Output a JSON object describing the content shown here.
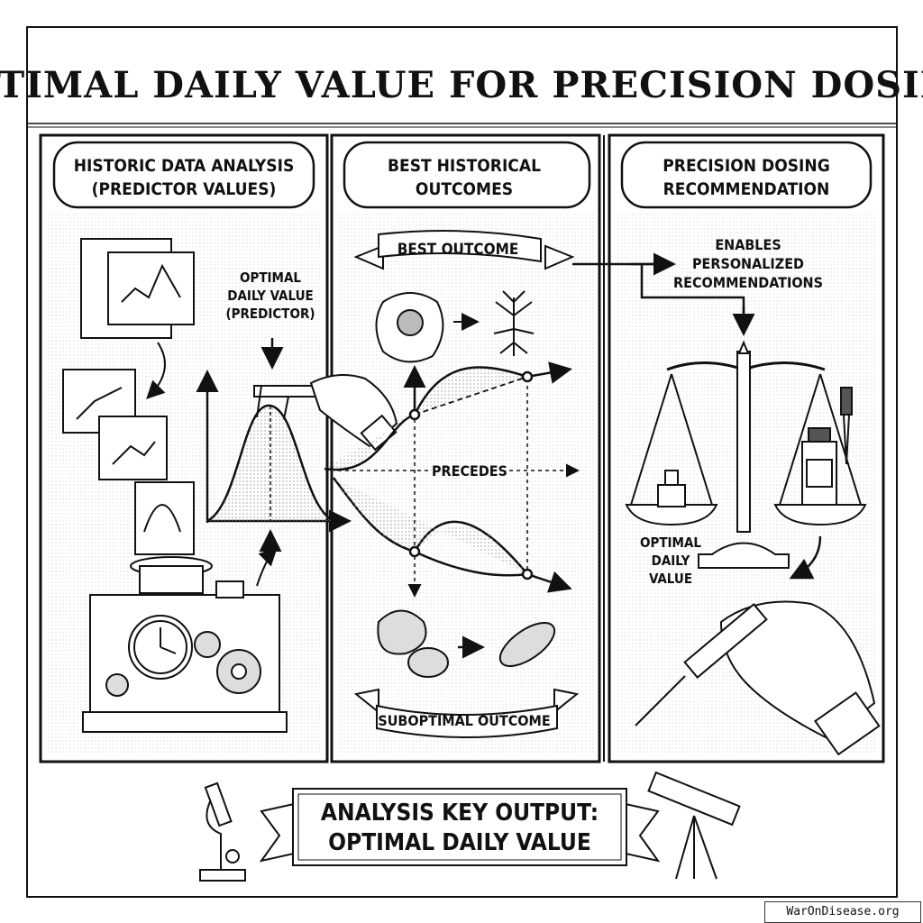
{
  "title": "OPTIMAL DAILY VALUE FOR PRECISION DOSING",
  "panels": [
    {
      "header_line1": "HISTORIC DATA ANALYSIS",
      "header_line2": "(PREDICTOR VALUES)",
      "annotation": [
        "OPTIMAL",
        "DAILY VALUE",
        "(PREDICTOR)"
      ]
    },
    {
      "header_line1": "BEST HISTORICAL",
      "header_line2": "OUTCOMES",
      "best_banner": "BEST OUTCOME",
      "precedes": "PRECEDES",
      "worst_banner": "SUBOPTIMAL OUTCOME"
    },
    {
      "header_line1": "PRECISION DOSING",
      "header_line2": "RECOMMENDATION",
      "annotation": [
        "ENABLES",
        "PERSONALIZED",
        "RECOMMENDATIONS"
      ],
      "scale_label": [
        "OPTIMAL",
        "DAILY",
        "VALUE"
      ]
    }
  ],
  "footer": {
    "line1": "ANALYSIS KEY OUTPUT:",
    "line2": "OPTIMAL DAILY VALUE"
  },
  "icons": [
    "scroll-chart-icon",
    "caliper-hand-icon",
    "clockwork-machine-icon",
    "cell-icon",
    "neuron-icon",
    "bacteria-icon",
    "balance-scale-icon",
    "medicine-bottle-icon",
    "dropper-icon",
    "syringe-hand-icon",
    "microscope-icon",
    "telescope-icon"
  ],
  "watermark": "WarOnDisease.org"
}
